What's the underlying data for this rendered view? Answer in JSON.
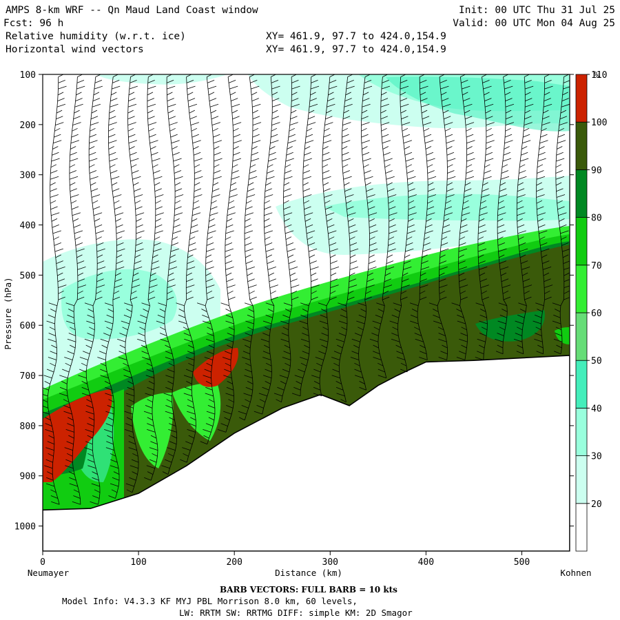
{
  "header": {
    "title": "AMPS 8-km WRF -- Qn Maud Land Coast window",
    "init": "Init: 00 UTC Thu 31 Jul 25",
    "fcst": "Fcst:   96 h",
    "valid": "Valid: 00 UTC Mon 04 Aug 25",
    "field1": "Relative humidity (w.r.t. ice)",
    "field2": "Horizontal wind vectors",
    "xy1": "XY= 461.9, 97.7 to 424.0,154.9",
    "xy2": "XY= 461.9, 97.7 to 424.0,154.9"
  },
  "footer": {
    "barb": "BARB VECTORS:  FULL BARB = 10 kts",
    "model_line": "Model Info: V4.3.3   KF      MYJ PBL  Morrison            8.0 km,  60 levels,",
    "phys_line": "LW: RRTM SW: RRTMG   DIFF: simple KM: 2D Smagor"
  },
  "chart_data": {
    "type": "heatmap",
    "xlabel": "Distance (km)",
    "ylabel": "Pressure (hPa)",
    "x_left_label": "Neumayer",
    "x_right_label": "Kohnen",
    "xlim": [
      0,
      550
    ],
    "ylim": [
      1050,
      100
    ],
    "x_ticks": [
      0,
      100,
      200,
      300,
      400,
      500
    ],
    "y_ticks": [
      100,
      200,
      300,
      400,
      500,
      600,
      700,
      800,
      900,
      1000
    ],
    "colorbar": {
      "unit": "%",
      "levels": [
        20,
        30,
        40,
        50,
        60,
        70,
        80,
        90,
        100,
        110
      ],
      "colors": [
        "#ffffff",
        "#ccfff0",
        "#99ffdd",
        "#44eebb",
        "#66dd77",
        "#33ee33",
        "#11cc11",
        "#008822",
        "#3a5a0a",
        "#cc2200"
      ]
    },
    "terrain_surface": {
      "x_km": [
        0,
        50,
        100,
        150,
        200,
        250,
        290,
        320,
        350,
        370,
        400,
        450,
        500,
        550
      ],
      "p_hPa": [
        968,
        965,
        935,
        880,
        815,
        765,
        738,
        760,
        720,
        700,
        673,
        670,
        665,
        660
      ]
    },
    "barb_note": "Wind barbs over full column"
  }
}
